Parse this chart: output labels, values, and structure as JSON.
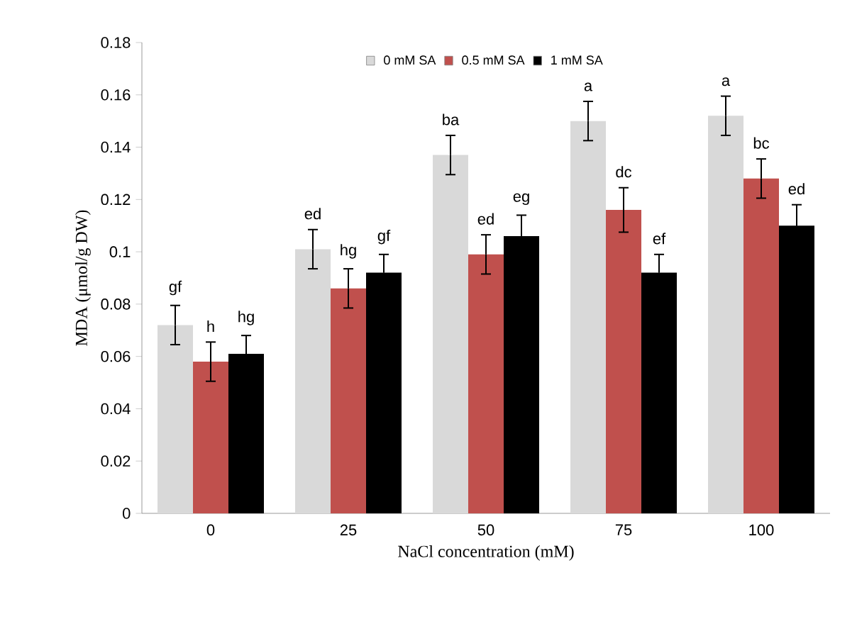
{
  "chart_data": {
    "type": "bar",
    "xlabel": "NaCl concentration (mM)",
    "ylabel": "MDA (μmol/g DW)",
    "categories": [
      "0",
      "25",
      "50",
      "75",
      "100"
    ],
    "series": [
      {
        "name": "0 mM SA",
        "color": "#d9d9d9",
        "values": [
          0.072,
          0.101,
          0.137,
          0.15,
          0.152
        ],
        "errors": [
          0.0075,
          0.0075,
          0.0075,
          0.0075,
          0.0075
        ]
      },
      {
        "name": "0.5 mM SA",
        "color": "#c0504d",
        "values": [
          0.058,
          0.086,
          0.099,
          0.116,
          0.128
        ],
        "errors": [
          0.0075,
          0.0075,
          0.0075,
          0.0085,
          0.0075
        ]
      },
      {
        "name": "1 mM SA",
        "color": "#000000",
        "values": [
          0.061,
          0.092,
          0.106,
          0.092,
          0.11
        ],
        "errors": [
          0.007,
          0.007,
          0.008,
          0.007,
          0.008
        ]
      }
    ],
    "ylim": [
      0,
      0.18
    ],
    "yticks": [
      0,
      0.02,
      0.04,
      0.06,
      0.08,
      0.1,
      0.12,
      0.14,
      0.16,
      0.18
    ],
    "legend": "top",
    "grid": false,
    "annotations": [
      "gf",
      "h",
      "hg",
      "ed",
      "hg",
      "gf",
      "ba",
      "ed",
      "eg",
      "a",
      "dc",
      "ef",
      "a",
      "bc",
      "ed"
    ]
  }
}
